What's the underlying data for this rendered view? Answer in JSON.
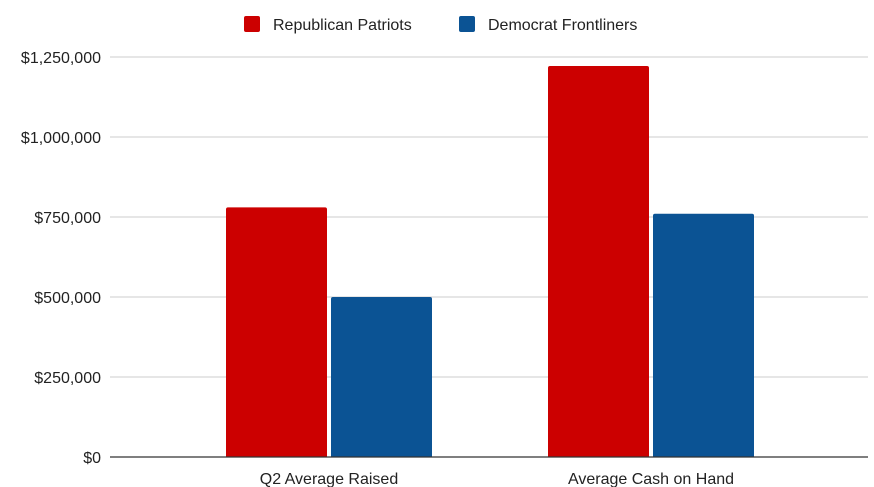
{
  "chart_data": {
    "type": "bar",
    "title": "",
    "xlabel": "",
    "ylabel": "",
    "categories": [
      "Q2 Average Raised",
      "Average Cash on Hand"
    ],
    "series": [
      {
        "name": "Republican Patriots",
        "color": "#cc0000",
        "values": [
          780000,
          1222000
        ]
      },
      {
        "name": "Democrat Frontliners",
        "color": "#0b5394",
        "values": [
          500000,
          760000
        ]
      }
    ],
    "ylim": [
      0,
      1250000
    ],
    "yticks": [
      0,
      250000,
      500000,
      750000,
      1000000,
      1250000
    ],
    "ytick_labels": [
      "$0",
      "$250,000",
      "$500,000",
      "$750,000",
      "$1,000,000",
      "$1,250,000"
    ],
    "grid": true,
    "legend_position": "top-center"
  }
}
